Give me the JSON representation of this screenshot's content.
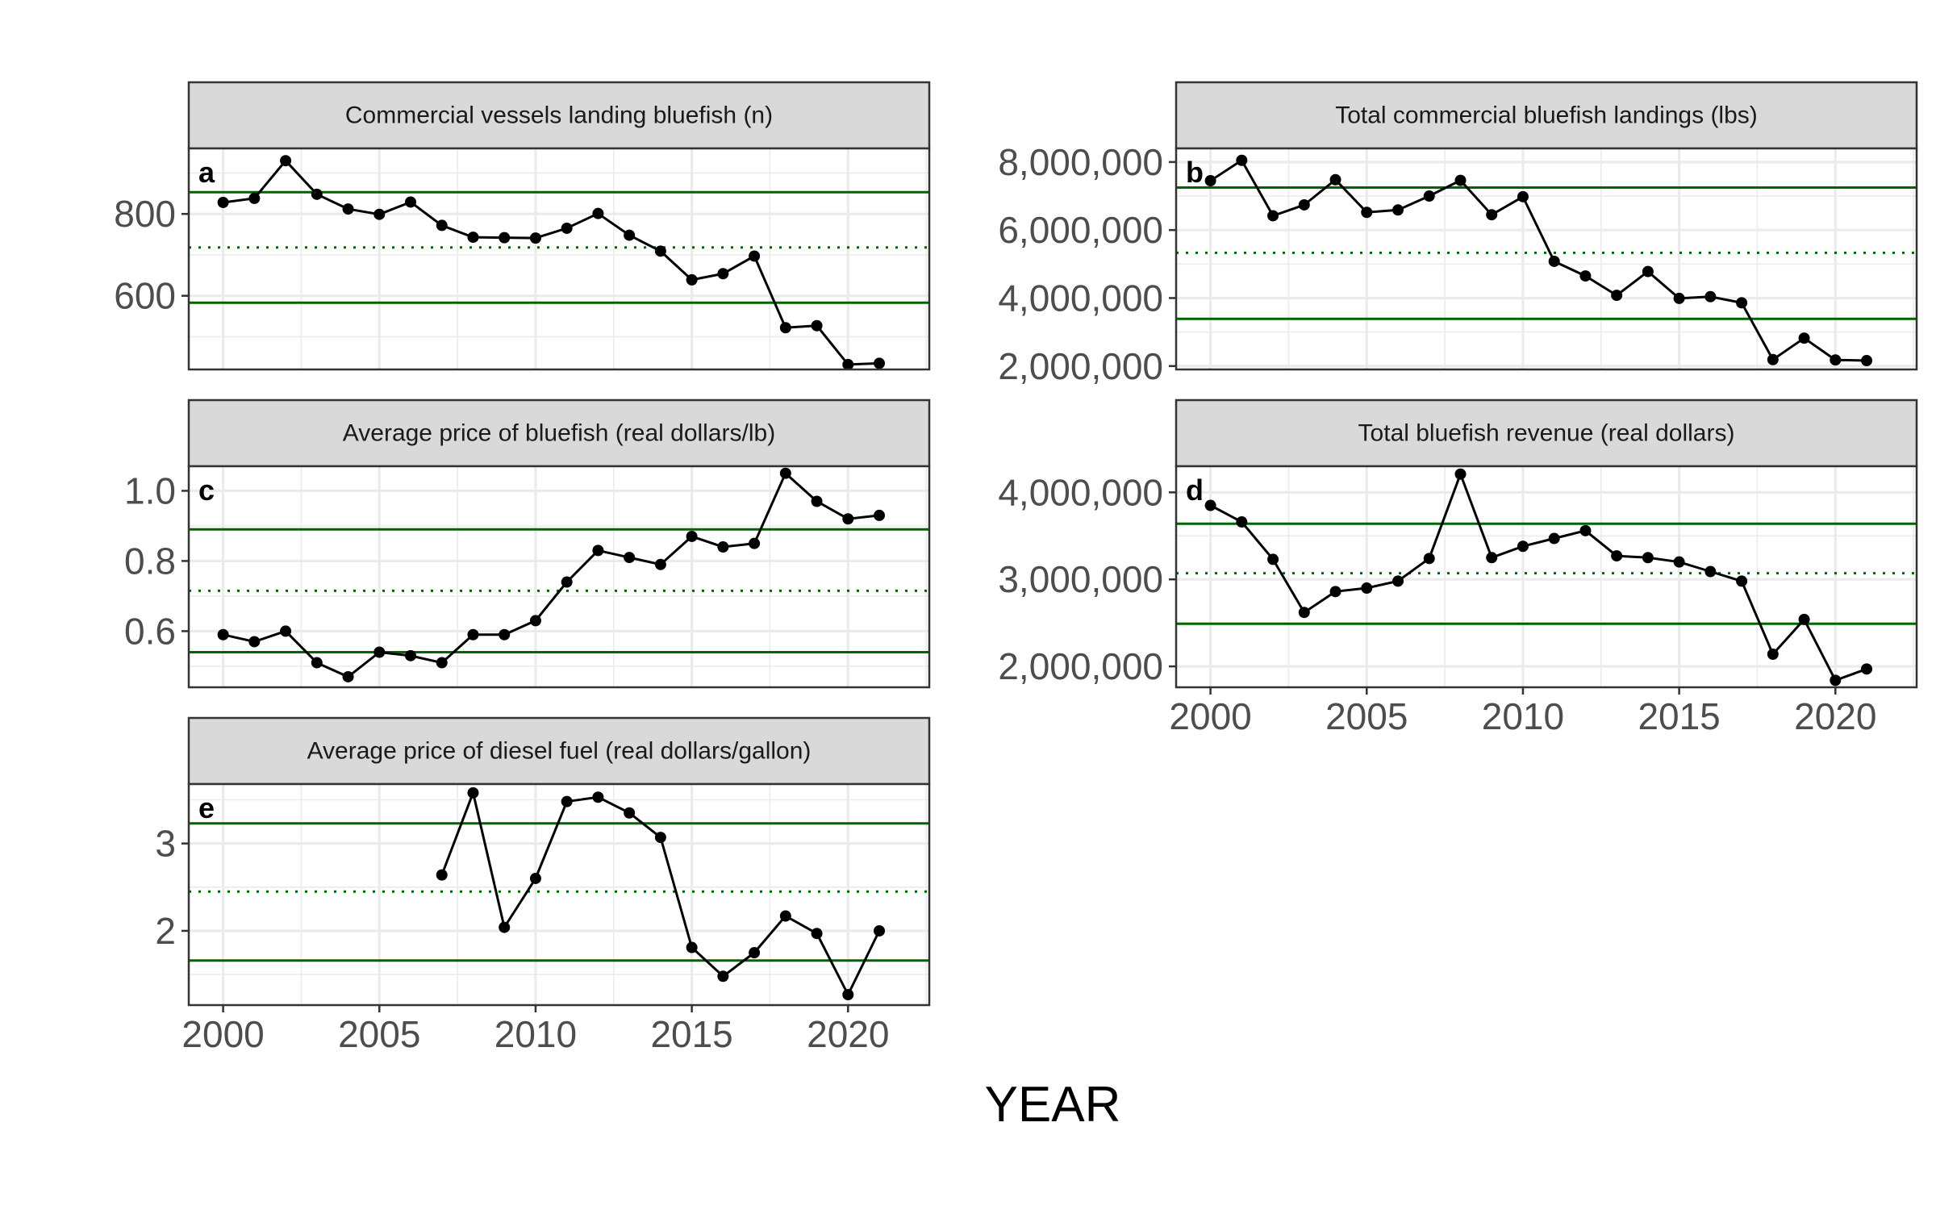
{
  "figure": {
    "xlabel": "YEAR"
  },
  "style": {
    "line_color": "#000000",
    "point_color": "#000000",
    "reference_line_color": "#006400",
    "strip_fill": "#d9d9d9",
    "grid_color": "#ebebeb"
  },
  "chart_data": [
    {
      "type": "line",
      "tag": "a",
      "title": "Commercial vessels landing bluefish (n)",
      "x": [
        2000,
        2001,
        2002,
        2003,
        2004,
        2005,
        2006,
        2007,
        2008,
        2009,
        2010,
        2011,
        2012,
        2013,
        2014,
        2015,
        2016,
        2017,
        2018,
        2019,
        2020,
        2021
      ],
      "values": [
        828,
        838,
        930,
        848,
        812,
        799,
        829,
        772,
        743,
        742,
        741,
        765,
        801,
        748,
        709,
        639,
        654,
        697,
        522,
        527,
        432,
        435
      ],
      "xlim": [
        1998.9,
        2022.6
      ],
      "ylim": [
        420,
        960
      ],
      "yticks": [
        600,
        800
      ],
      "ytick_labels": [
        "600",
        "800"
      ],
      "xticks": [
        2000,
        2005,
        2010,
        2015,
        2020
      ],
      "xtick_labels": [
        "2000",
        "2005",
        "2010",
        "2015",
        "2020"
      ],
      "show_xticks": false,
      "mean": 718,
      "upper": 853,
      "lower": 583
    },
    {
      "type": "line",
      "tag": "b",
      "title": "Total commercial bluefish landings (lbs)",
      "x": [
        2000,
        2001,
        2002,
        2003,
        2004,
        2005,
        2006,
        2007,
        2008,
        2009,
        2010,
        2011,
        2012,
        2013,
        2014,
        2015,
        2016,
        2017,
        2018,
        2019,
        2020,
        2021
      ],
      "values": [
        7450000,
        8050000,
        6420000,
        6740000,
        7480000,
        6520000,
        6590000,
        7000000,
        7460000,
        6450000,
        6980000,
        5080000,
        4650000,
        4080000,
        4780000,
        3990000,
        4040000,
        3860000,
        2190000,
        2820000,
        2180000,
        2160000
      ],
      "xlim": [
        1998.9,
        2022.6
      ],
      "ylim": [
        1900000,
        8400000
      ],
      "yticks": [
        2000000,
        4000000,
        6000000,
        8000000
      ],
      "ytick_labels": [
        "2,000,000",
        "4,000,000",
        "6,000,000",
        "8,000,000"
      ],
      "xticks": [
        2000,
        2005,
        2010,
        2015,
        2020
      ],
      "xtick_labels": [
        "2000",
        "2005",
        "2010",
        "2015",
        "2020"
      ],
      "show_xticks": false,
      "mean": 5330000,
      "upper": 7250000,
      "lower": 3390000
    },
    {
      "type": "line",
      "tag": "c",
      "title": "Average price of bluefish (real dollars/lb)",
      "x": [
        2000,
        2001,
        2002,
        2003,
        2004,
        2005,
        2006,
        2007,
        2008,
        2009,
        2010,
        2011,
        2012,
        2013,
        2014,
        2015,
        2016,
        2017,
        2018,
        2019,
        2020,
        2021
      ],
      "values": [
        0.59,
        0.57,
        0.6,
        0.51,
        0.47,
        0.54,
        0.53,
        0.51,
        0.59,
        0.59,
        0.63,
        0.74,
        0.83,
        0.81,
        0.79,
        0.87,
        0.84,
        0.85,
        1.05,
        0.97,
        0.92,
        0.93
      ],
      "xlim": [
        1998.9,
        2022.6
      ],
      "ylim": [
        0.44,
        1.07
      ],
      "yticks": [
        0.6,
        0.8,
        1.0
      ],
      "ytick_labels": [
        "0.6",
        "0.8",
        "1.0"
      ],
      "xticks": [
        2000,
        2005,
        2010,
        2015,
        2020
      ],
      "xtick_labels": [
        "2000",
        "2005",
        "2010",
        "2015",
        "2020"
      ],
      "show_xticks": false,
      "mean": 0.715,
      "upper": 0.89,
      "lower": 0.54
    },
    {
      "type": "line",
      "tag": "d",
      "title": "Total bluefish revenue (real dollars)",
      "x": [
        2000,
        2001,
        2002,
        2003,
        2004,
        2005,
        2006,
        2007,
        2008,
        2009,
        2010,
        2011,
        2012,
        2013,
        2014,
        2015,
        2016,
        2017,
        2018,
        2019,
        2020,
        2021
      ],
      "values": [
        3850000,
        3660000,
        3230000,
        2620000,
        2860000,
        2900000,
        2980000,
        3240000,
        4210000,
        3250000,
        3380000,
        3470000,
        3560000,
        3270000,
        3250000,
        3200000,
        3090000,
        2980000,
        2140000,
        2540000,
        1840000,
        1970000
      ],
      "xlim": [
        1998.9,
        2022.6
      ],
      "ylim": [
        1760000,
        4300000
      ],
      "yticks": [
        2000000,
        3000000,
        4000000
      ],
      "ytick_labels": [
        "2,000,000",
        "3,000,000",
        "4,000,000"
      ],
      "xticks": [
        2000,
        2005,
        2010,
        2015,
        2020
      ],
      "xtick_labels": [
        "2000",
        "2005",
        "2010",
        "2015",
        "2020"
      ],
      "show_xticks": true,
      "mean": 3070000,
      "upper": 3640000,
      "lower": 2490000
    },
    {
      "type": "line",
      "tag": "e",
      "title": "Average price of diesel fuel (real dollars/gallon)",
      "x": [
        2007,
        2008,
        2009,
        2010,
        2011,
        2012,
        2013,
        2014,
        2015,
        2016,
        2017,
        2018,
        2019,
        2020,
        2021
      ],
      "values": [
        2.64,
        3.58,
        2.04,
        2.6,
        3.48,
        3.53,
        3.35,
        3.07,
        1.81,
        1.48,
        1.75,
        2.17,
        1.97,
        1.27,
        2.0
      ],
      "xlim": [
        1998.9,
        2022.6
      ],
      "ylim": [
        1.15,
        3.68
      ],
      "yticks": [
        2,
        3
      ],
      "ytick_labels": [
        "2",
        "3"
      ],
      "xticks": [
        2000,
        2005,
        2010,
        2015,
        2020
      ],
      "xtick_labels": [
        "2000",
        "2005",
        "2010",
        "2015",
        "2020"
      ],
      "show_xticks": true,
      "mean": 2.45,
      "upper": 3.23,
      "lower": 1.66
    }
  ]
}
